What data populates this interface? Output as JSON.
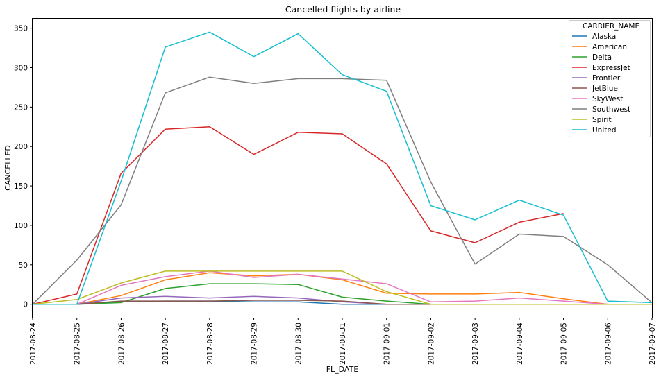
{
  "chart_data": {
    "type": "line",
    "title": "Cancelled flights by airline",
    "xlabel": "FL_DATE",
    "ylabel": "CANCELLED",
    "x": [
      "2017-08-24",
      "2017-08-25",
      "2017-08-26",
      "2017-08-27",
      "2017-08-28",
      "2017-08-29",
      "2017-08-30",
      "2017-08-31",
      "2017-09-01",
      "2017-09-02",
      "2017-09-03",
      "2017-09-04",
      "2017-09-05",
      "2017-09-06",
      "2017-09-07"
    ],
    "ylim": [
      -17,
      362
    ],
    "yticks": [
      0,
      50,
      100,
      150,
      200,
      250,
      300,
      350
    ],
    "grid": false,
    "legend": {
      "title": "CARRIER_NAME",
      "position": "top-right"
    },
    "series": [
      {
        "name": "Alaska",
        "color": "#1f77b4",
        "values": [
          null,
          0,
          3,
          4,
          4,
          3,
          3,
          0,
          0,
          0,
          0,
          0,
          0,
          0,
          0
        ]
      },
      {
        "name": "American",
        "color": "#ff7f0e",
        "values": [
          null,
          0,
          11,
          31,
          40,
          36,
          38,
          31,
          14,
          13,
          13,
          15,
          7,
          0,
          0
        ]
      },
      {
        "name": "Delta",
        "color": "#2ca02c",
        "values": [
          null,
          0,
          2,
          20,
          26,
          26,
          25,
          9,
          4,
          0,
          0,
          0,
          0,
          0,
          0
        ]
      },
      {
        "name": "ExpressJet",
        "color": "#d62728",
        "values": [
          0,
          13,
          166,
          222,
          225,
          190,
          218,
          216,
          178,
          93,
          78,
          104,
          115,
          null,
          null
        ]
      },
      {
        "name": "Frontier",
        "color": "#9467bd",
        "values": [
          null,
          0,
          8,
          10,
          8,
          10,
          8,
          3,
          0,
          0,
          0,
          0,
          0,
          null,
          null
        ]
      },
      {
        "name": "JetBlue",
        "color": "#8c564b",
        "values": [
          null,
          0,
          4,
          4,
          4,
          5,
          5,
          4,
          0,
          0,
          0,
          0,
          0,
          0,
          0
        ]
      },
      {
        "name": "SkyWest",
        "color": "#e377c2",
        "values": [
          null,
          0,
          24,
          35,
          42,
          34,
          38,
          32,
          26,
          3,
          4,
          8,
          4,
          0,
          0
        ]
      },
      {
        "name": "Southwest",
        "color": "#7f7f7f",
        "values": [
          0,
          56,
          126,
          268,
          288,
          280,
          286,
          286,
          284,
          155,
          51,
          89,
          86,
          50,
          2
        ]
      },
      {
        "name": "Spirit",
        "color": "#bcbd22",
        "values": [
          0,
          6,
          27,
          42,
          42,
          42,
          42,
          42,
          16,
          0,
          0,
          0,
          0,
          0,
          0
        ]
      },
      {
        "name": "United",
        "color": "#17becf",
        "values": [
          0,
          0,
          156,
          326,
          345,
          314,
          343,
          291,
          270,
          125,
          107,
          132,
          113,
          4,
          2
        ]
      }
    ]
  }
}
